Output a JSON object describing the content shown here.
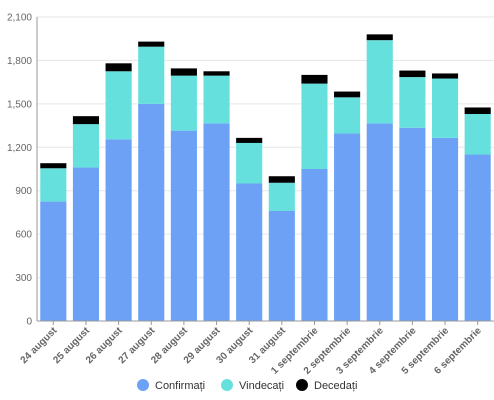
{
  "chart_data": {
    "type": "bar",
    "stacked": true,
    "categories": [
      "24 august",
      "25 august",
      "26 august",
      "27 august",
      "28 august",
      "29 august",
      "30 august",
      "31 august",
      "1 septembrie",
      "2 septembrie",
      "3 septembrie",
      "4 septembrie",
      "5 septembrie",
      "6 septembrie"
    ],
    "series": [
      {
        "name": "Confirmați",
        "color": "#6ca1f5",
        "values": [
          825,
          1060,
          1255,
          1500,
          1315,
          1365,
          950,
          760,
          1050,
          1295,
          1365,
          1335,
          1265,
          1150
        ]
      },
      {
        "name": "Vindecați",
        "color": "#66e0dd",
        "values": [
          230,
          300,
          470,
          395,
          380,
          330,
          280,
          195,
          590,
          250,
          575,
          350,
          410,
          280
        ]
      },
      {
        "name": "Decedați",
        "color": "#000000",
        "values": [
          35,
          55,
          55,
          35,
          50,
          30,
          35,
          45,
          60,
          40,
          40,
          45,
          35,
          45
        ]
      }
    ],
    "ylim": [
      0,
      2100
    ],
    "yticks": [
      "0",
      "300",
      "600",
      "900",
      "1,200",
      "1,500",
      "1,800",
      "2,100"
    ],
    "ytick_values": [
      0,
      300,
      600,
      900,
      1200,
      1500,
      1800,
      2100
    ],
    "grid": true,
    "legend_position": "bottom"
  }
}
